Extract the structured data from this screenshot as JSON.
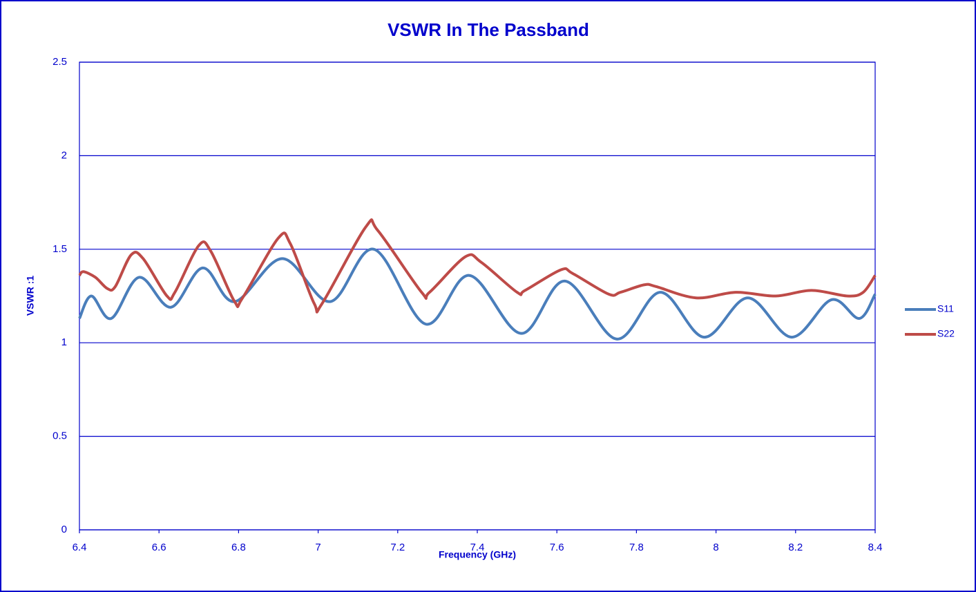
{
  "chart_data": {
    "type": "line",
    "title": "VSWR In The Passband",
    "xlabel": "Frequency (GHz)",
    "ylabel": "VSWR :1",
    "xlim": [
      6.4,
      8.4
    ],
    "xticks": [
      6.4,
      6.6,
      6.8,
      7,
      7.2,
      7.4,
      7.6,
      7.8,
      8,
      8.2,
      8.4
    ],
    "ylim": [
      0,
      2.5
    ],
    "yticks": [
      0,
      0.5,
      1,
      1.5,
      2,
      2.5
    ],
    "grid": true,
    "legend": "right",
    "series": [
      {
        "name": "S11",
        "color": "#4a7ebb",
        "x": [
          6.4,
          6.43,
          6.48,
          6.55,
          6.63,
          6.71,
          6.79,
          6.91,
          7.03,
          7.14,
          7.27,
          7.38,
          7.51,
          7.62,
          7.75,
          7.86,
          7.97,
          8.08,
          8.19,
          8.29,
          8.36,
          8.4
        ],
        "values": [
          1.13,
          1.25,
          1.13,
          1.35,
          1.19,
          1.4,
          1.22,
          1.45,
          1.22,
          1.5,
          1.1,
          1.36,
          1.05,
          1.33,
          1.02,
          1.27,
          1.03,
          1.24,
          1.03,
          1.23,
          1.13,
          1.26
        ]
      },
      {
        "name": "S22",
        "color": "#be4b48",
        "x": [
          6.4,
          6.41,
          6.44,
          6.47,
          6.49,
          6.53,
          6.56,
          6.62,
          6.64,
          6.7,
          6.73,
          6.79,
          6.81,
          6.9,
          6.93,
          6.99,
          7.01,
          7.12,
          7.15,
          7.26,
          7.28,
          7.37,
          7.41,
          7.5,
          7.52,
          7.61,
          7.64,
          7.73,
          7.76,
          7.82,
          7.85,
          7.95,
          8.05,
          8.15,
          8.24,
          8.33,
          8.37,
          8.4
        ],
        "values": [
          1.36,
          1.38,
          1.35,
          1.29,
          1.3,
          1.47,
          1.45,
          1.25,
          1.27,
          1.52,
          1.49,
          1.22,
          1.24,
          1.56,
          1.53,
          1.21,
          1.21,
          1.62,
          1.6,
          1.27,
          1.27,
          1.46,
          1.43,
          1.27,
          1.28,
          1.39,
          1.37,
          1.26,
          1.27,
          1.31,
          1.3,
          1.24,
          1.27,
          1.25,
          1.28,
          1.25,
          1.27,
          1.36
        ]
      }
    ]
  }
}
